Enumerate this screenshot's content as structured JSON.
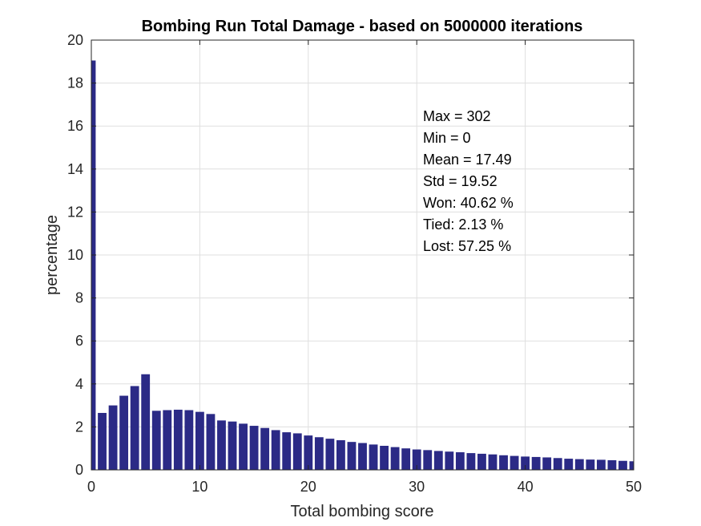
{
  "chart_data": {
    "type": "bar",
    "title": "Bombing Run Total Damage - based on 5000000 iterations",
    "xlabel": "Total bombing score",
    "ylabel": "percentage",
    "xlim": [
      0,
      50
    ],
    "ylim": [
      0,
      20
    ],
    "xticks": [
      "0",
      "10",
      "20",
      "30",
      "40",
      "50"
    ],
    "yticks": [
      "0",
      "2",
      "4",
      "6",
      "8",
      "10",
      "12",
      "14",
      "16",
      "18",
      "20"
    ],
    "grid": true,
    "bar_color": "#2b2a86",
    "x": [
      0,
      1,
      2,
      3,
      4,
      5,
      6,
      7,
      8,
      9,
      10,
      11,
      12,
      13,
      14,
      15,
      16,
      17,
      18,
      19,
      20,
      21,
      22,
      23,
      24,
      25,
      26,
      27,
      28,
      29,
      30,
      31,
      32,
      33,
      34,
      35,
      36,
      37,
      38,
      39,
      40,
      41,
      42,
      43,
      44,
      45,
      46,
      47,
      48,
      49,
      50
    ],
    "values": [
      19.05,
      2.65,
      3.0,
      3.45,
      3.9,
      4.45,
      2.75,
      2.78,
      2.8,
      2.78,
      2.7,
      2.6,
      2.3,
      2.25,
      2.15,
      2.05,
      1.95,
      1.85,
      1.75,
      1.7,
      1.6,
      1.52,
      1.45,
      1.38,
      1.3,
      1.25,
      1.18,
      1.12,
      1.06,
      1.0,
      0.95,
      0.92,
      0.88,
      0.85,
      0.82,
      0.78,
      0.75,
      0.72,
      0.68,
      0.65,
      0.62,
      0.6,
      0.58,
      0.55,
      0.52,
      0.5,
      0.48,
      0.47,
      0.45,
      0.42,
      0.4
    ],
    "stats": [
      "Max  = 302",
      "Min  = 0",
      "Mean = 17.49",
      "Std  = 19.52",
      "Won:  40.62 %",
      "Tied:  2.13 %",
      "Lost: 57.25 %"
    ]
  }
}
